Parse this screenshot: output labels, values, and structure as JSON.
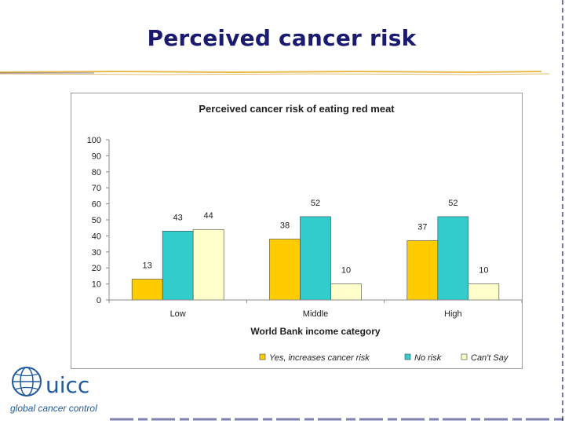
{
  "slide": {
    "title": "Perceived cancer risk"
  },
  "logo": {
    "wordmark": "uicc",
    "tagline": "global cancer control",
    "icon": "globe-icon"
  },
  "colors": {
    "title": "#1a1a6e",
    "accent_line": "#e8b84a",
    "yes": "#ffcc00",
    "no_risk": "#33cccc",
    "cant_say": "#ffffcc"
  },
  "chart_data": {
    "type": "bar",
    "title": "Perceived cancer risk of eating red meat",
    "xlabel": "World Bank income category",
    "ylabel": "",
    "categories": [
      "Low",
      "Middle",
      "High"
    ],
    "ylim": [
      0,
      100
    ],
    "yticks": [
      0,
      10,
      20,
      30,
      40,
      50,
      60,
      70,
      80,
      90,
      100
    ],
    "grid": false,
    "legend_position": "bottom-right",
    "series": [
      {
        "name": "Yes, increases cancer risk",
        "values": [
          13,
          38,
          37
        ],
        "color": "#ffcc00"
      },
      {
        "name": "No risk",
        "values": [
          43,
          52,
          52
        ],
        "color": "#33cccc"
      },
      {
        "name": "Can't Say",
        "values": [
          44,
          10,
          10
        ],
        "color": "#ffffcc"
      }
    ]
  }
}
